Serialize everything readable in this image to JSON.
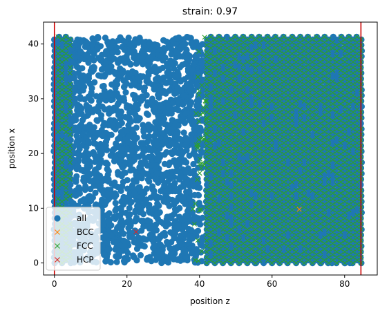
{
  "chart_data": {
    "type": "scatter",
    "title": "strain: 0.97",
    "xlabel": "position z",
    "ylabel": "position x",
    "xlim": [
      -3,
      89
    ],
    "ylim": [
      -2.2,
      44
    ],
    "xticks": [
      0,
      20,
      40,
      60,
      80
    ],
    "yticks": [
      0,
      10,
      20,
      30,
      40
    ],
    "legend_position": "lower-left",
    "vertical_lines": [
      {
        "x": 0,
        "color": "#cc0000"
      },
      {
        "x": 84.5,
        "color": "#cc0000"
      }
    ],
    "series": [
      {
        "name": "all",
        "marker": "circle",
        "color": "#1f77b4"
      },
      {
        "name": "BCC",
        "marker": "x",
        "color": "#ff7f0e",
        "points": [
          [
            67.5,
            9.8
          ]
        ]
      },
      {
        "name": "FCC",
        "marker": "x",
        "color": "#2ca02c"
      },
      {
        "name": "HCP",
        "marker": "x",
        "color": "#d62728",
        "points": [
          [
            22.5,
            5.7
          ]
        ]
      }
    ],
    "structure": {
      "left_columns": {
        "z_start": 0,
        "z_end": 4.5,
        "step": 1.1
      },
      "disordered_region": {
        "z_start": 5,
        "z_end": 41
      },
      "right_columns": {
        "z_start": 42,
        "z_end": 85,
        "step": 1.12
      },
      "row_spacing": 1.02,
      "y_max": 41.3,
      "extra_points": [
        [
          55.3,
          0.0
        ],
        [
          73.5,
          0.0
        ],
        [
          76.5,
          0.0
        ],
        [
          80,
          0.0
        ],
        [
          81.5,
          0.0
        ]
      ]
    }
  }
}
